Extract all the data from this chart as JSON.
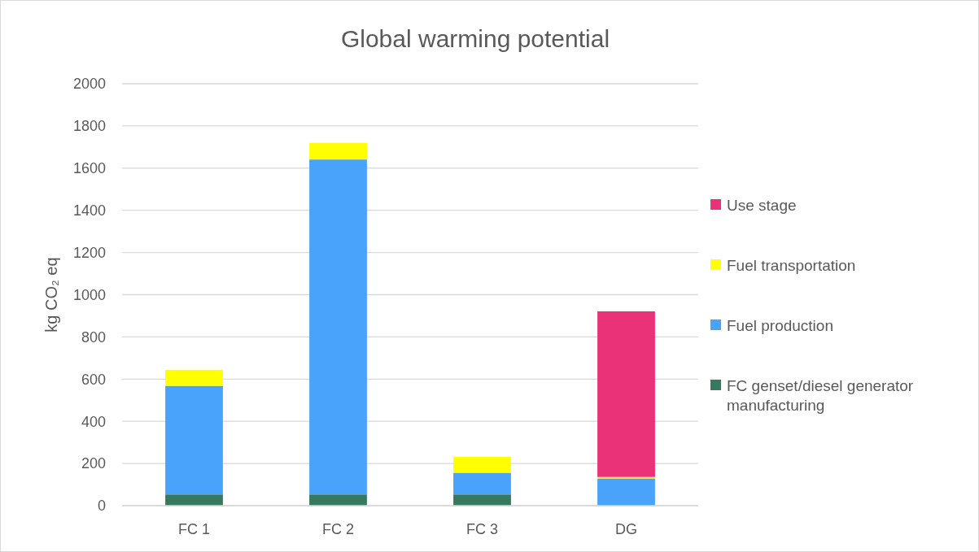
{
  "chart_data": {
    "type": "bar",
    "title": "Global warming potential",
    "ylabel": "kg CO₂ eq",
    "categories": [
      "FC 1",
      "FC 2",
      "FC 3",
      "DG"
    ],
    "series": [
      {
        "name": "FC genset/diesel generator manufacturing",
        "color": "#357a5f",
        "values": [
          53,
          53,
          53,
          0
        ]
      },
      {
        "name": "Fuel production",
        "color": "#4aa3fb",
        "values": [
          515,
          1588,
          103,
          129
        ]
      },
      {
        "name": "Fuel transportation",
        "color": "#ffff00",
        "values": [
          76,
          78,
          76,
          7
        ]
      },
      {
        "name": "Use stage",
        "color": "#e93278",
        "values": [
          0,
          0,
          0,
          785
        ]
      }
    ],
    "stacked": true,
    "ylim": [
      0,
      2000
    ],
    "yticks": [
      0,
      200,
      400,
      600,
      800,
      1000,
      1200,
      1400,
      1600,
      1800,
      2000
    ],
    "grid": "y",
    "legend": "right"
  }
}
